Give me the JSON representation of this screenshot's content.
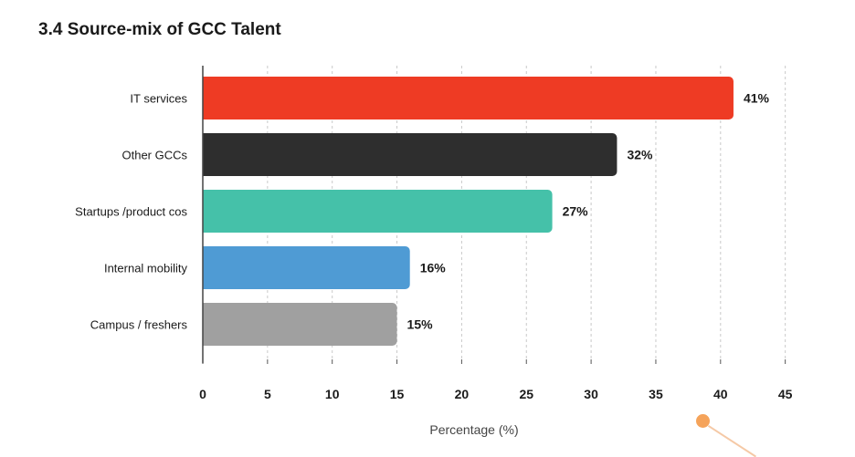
{
  "chart_data": {
    "type": "bar",
    "orientation": "horizontal",
    "title": "3.4 Source-mix of GCC Talent",
    "xlabel": "Percentage (%)",
    "ylabel": "",
    "categories": [
      "IT services",
      "Other GCCs",
      "Startups /product cos",
      "Internal mobility",
      "Campus / freshers"
    ],
    "values": [
      41,
      32,
      27,
      16,
      15
    ],
    "data_labels": [
      "41%",
      "32%",
      "27%",
      "16%",
      "15%"
    ],
    "colors": [
      "#ee3b24",
      "#2e2e2e",
      "#45c1a9",
      "#4f9bd4",
      "#a0a0a0"
    ],
    "xlim": [
      0,
      45
    ],
    "xticks": [
      "0",
      "5",
      "10",
      "15",
      "20",
      "25",
      "30",
      "35",
      "40",
      "45"
    ],
    "grid": "vertical dashed"
  }
}
